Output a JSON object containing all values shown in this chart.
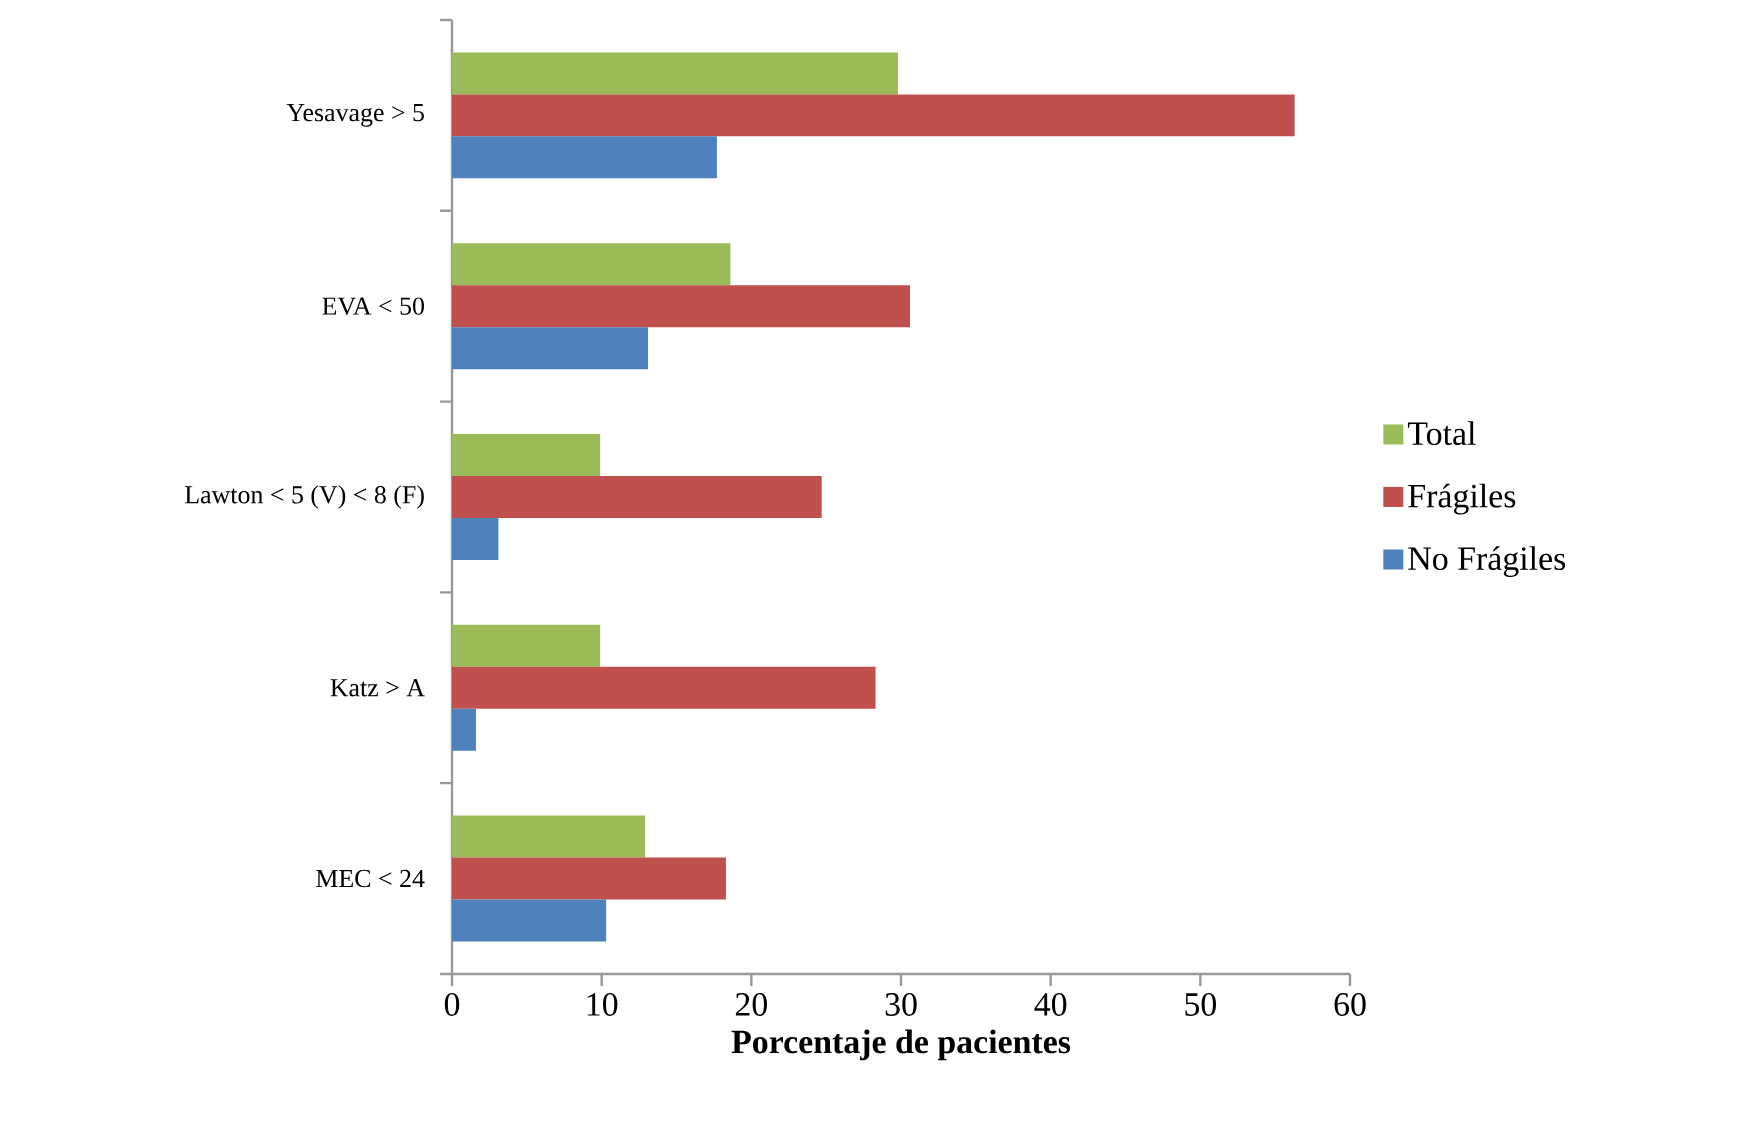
{
  "chart_data": {
    "type": "bar",
    "orientation": "horizontal",
    "xlabel": "Porcentaje de pacientes",
    "categories": [
      "Yesavage > 5",
      "EVA < 50",
      "Lawton < 5 (V) < 8 (F)",
      "Katz > A",
      "MEC < 24"
    ],
    "series": [
      {
        "name": "Total",
        "color": "#9bbb59",
        "values": [
          29.8,
          18.6,
          9.9,
          9.9,
          12.9
        ]
      },
      {
        "name": "Frágiles",
        "color": "#c0504d",
        "values": [
          56.3,
          30.6,
          24.7,
          28.3,
          18.3
        ]
      },
      {
        "name": "No Frágiles",
        "color": "#4f81bd",
        "values": [
          17.7,
          13.1,
          3.1,
          1.6,
          10.3
        ]
      }
    ],
    "xlim": [
      0,
      60
    ],
    "xticks": [
      0,
      10,
      20,
      30,
      40,
      50,
      60
    ],
    "grid": false,
    "legend": "right"
  }
}
